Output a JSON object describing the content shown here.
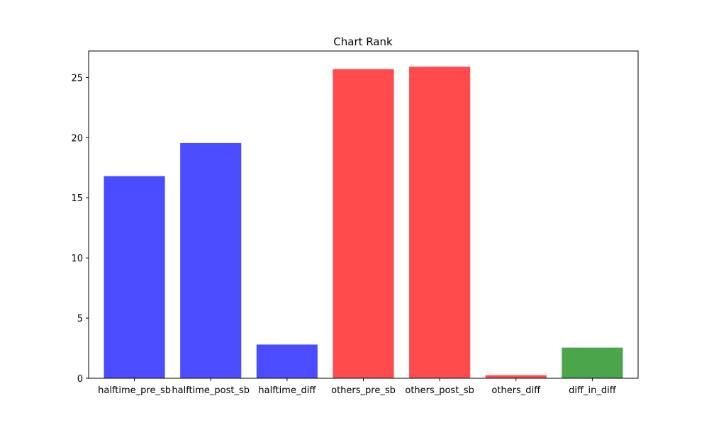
{
  "chart_data": {
    "type": "bar",
    "title": "Chart Rank",
    "xlabel": "",
    "ylabel": "",
    "categories": [
      "halftime_pre_sb",
      "halftime_post_sb",
      "halftime_diff",
      "others_pre_sb",
      "others_post_sb",
      "others_diff",
      "diff_in_diff"
    ],
    "values": [
      16.8,
      19.55,
      2.8,
      25.7,
      25.9,
      0.25,
      2.55
    ],
    "bar_colors": [
      "#4b4bff",
      "#4b4bff",
      "#4b4bff",
      "#ff4b4b",
      "#ff4b4b",
      "#ff4b4b",
      "#4ba64b"
    ],
    "ylim": [
      0,
      27.2
    ],
    "yticks": [
      0,
      5,
      10,
      15,
      20,
      25
    ],
    "grid": false,
    "legend": "none"
  }
}
